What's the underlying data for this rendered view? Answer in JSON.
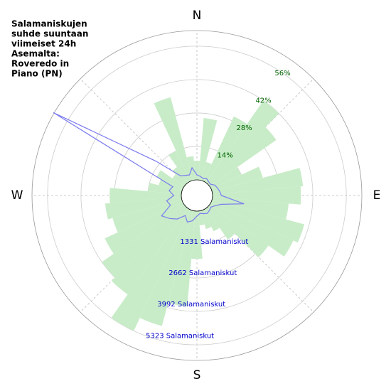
{
  "chart_data": {
    "type": "polar",
    "title_lines": [
      "Salamaniskujen",
      "suhde suuntaan",
      "viimeiset 24h",
      "Asemalta:",
      "Roveredo in",
      "Piano (PN)"
    ],
    "compass_labels": [
      {
        "value": 0,
        "label": "N"
      },
      {
        "value": 90,
        "label": "E"
      },
      {
        "value": 180,
        "label": "S"
      },
      {
        "value": 270,
        "label": "W"
      }
    ],
    "x": [
      0,
      10,
      20,
      30,
      40,
      50,
      60,
      70,
      80,
      90,
      100,
      110,
      120,
      130,
      140,
      150,
      160,
      170,
      180,
      190,
      200,
      210,
      220,
      230,
      240,
      250,
      260,
      270,
      280,
      290,
      300,
      310,
      320,
      330,
      340,
      350
    ],
    "series": [
      {
        "color": "#c8ecc8",
        "axis": "r",
        "values": [
          8,
          26,
          8,
          30,
          42,
          34,
          14,
          22,
          38,
          37,
          32,
          40,
          38,
          30,
          16,
          10,
          8,
          6,
          20,
          40,
          50,
          56,
          44,
          42,
          36,
          30,
          32,
          30,
          14,
          10,
          12,
          6,
          8,
          14,
          36,
          10
        ]
      },
      {
        "color": "#7b7bf0",
        "axis": "r2",
        "values": [
          200,
          150,
          100,
          150,
          100,
          80,
          200,
          250,
          300,
          350,
          1280,
          400,
          200,
          100,
          150,
          200,
          150,
          100,
          200,
          400,
          500,
          300,
          600,
          800,
          1000,
          500,
          600,
          300,
          500,
          400,
          5975,
          1500,
          400,
          300,
          250,
          500
        ]
      }
    ],
    "rlim": [
      0,
      62.5
    ],
    "rticks": [
      {
        "value": 14,
        "label": "14%"
      },
      {
        "value": 28,
        "label": "28%"
      },
      {
        "value": 42,
        "label": "42%"
      },
      {
        "value": 56,
        "label": "56%"
      }
    ],
    "r2lim": [
      0,
      5942
    ],
    "r2ticks": [
      {
        "value": 1331,
        "label": "1331 Salamaniskut"
      },
      {
        "value": 2662,
        "label": "2662 Salamaniskut"
      },
      {
        "value": 3992,
        "label": "3992 Salamaniskut"
      },
      {
        "value": 5323,
        "label": "5323 Salamaniskut"
      }
    ],
    "grid": true
  }
}
